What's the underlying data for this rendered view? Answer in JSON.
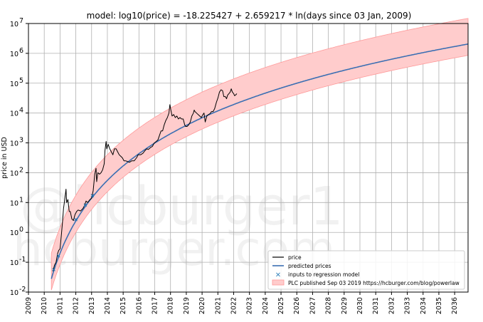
{
  "chart_data": {
    "type": "line",
    "title": "model: log10(price) = -18.225427 + 2.659217 * ln(days since 03 Jan, 2009)",
    "xlabel": "",
    "ylabel": "price in USD",
    "xlim": [
      2009.0,
      2036.85
    ],
    "ylim_log10": [
      -2,
      7
    ],
    "y_scale": "log",
    "grid": true,
    "x_tick_labels": [
      "2009",
      "2010",
      "2011",
      "2012",
      "2013",
      "2014",
      "2015",
      "2016",
      "2017",
      "2018",
      "2019",
      "2020",
      "2021",
      "2022",
      "2023",
      "2024",
      "2025",
      "2026",
      "2027",
      "2028",
      "2029",
      "2030",
      "2031",
      "2032",
      "2033",
      "2034",
      "2035",
      "2036"
    ],
    "y_tick_labels": [
      {
        "base": "10",
        "exp": "-2"
      },
      {
        "base": "10",
        "exp": "-1"
      },
      {
        "base": "10",
        "exp": "0"
      },
      {
        "base": "10",
        "exp": "1"
      },
      {
        "base": "10",
        "exp": "2"
      },
      {
        "base": "10",
        "exp": "3"
      },
      {
        "base": "10",
        "exp": "4"
      },
      {
        "base": "10",
        "exp": "5"
      },
      {
        "base": "10",
        "exp": "6"
      },
      {
        "base": "10",
        "exp": "7"
      }
    ],
    "model": {
      "intercept": -18.225427,
      "slope": 2.659217,
      "epoch": "03 Jan, 2009",
      "start_year": 2010.45,
      "band_upper_log10_offset": 0.86,
      "band_lower_log10_offset": -0.38
    },
    "series": [
      {
        "name": "price",
        "color": "#000000",
        "points": [
          [
            2010.55,
            -1.3
          ],
          [
            2010.65,
            -1.1
          ],
          [
            2010.75,
            -1.0
          ],
          [
            2010.85,
            -0.7
          ],
          [
            2010.92,
            -0.6
          ],
          [
            2011.0,
            -0.55
          ],
          [
            2011.08,
            -0.1
          ],
          [
            2011.15,
            0.3
          ],
          [
            2011.22,
            0.8
          ],
          [
            2011.3,
            1.1
          ],
          [
            2011.38,
            1.45
          ],
          [
            2011.42,
            1.0
          ],
          [
            2011.5,
            1.1
          ],
          [
            2011.58,
            0.7
          ],
          [
            2011.65,
            0.7
          ],
          [
            2011.75,
            0.45
          ],
          [
            2011.85,
            0.4
          ],
          [
            2011.95,
            0.6
          ],
          [
            2012.05,
            0.7
          ],
          [
            2012.15,
            0.75
          ],
          [
            2012.3,
            0.72
          ],
          [
            2012.45,
            0.8
          ],
          [
            2012.55,
            0.9
          ],
          [
            2012.65,
            1.05
          ],
          [
            2012.75,
            1.0
          ],
          [
            2012.9,
            1.1
          ],
          [
            2013.0,
            1.15
          ],
          [
            2013.1,
            1.4
          ],
          [
            2013.2,
            1.95
          ],
          [
            2013.28,
            2.15
          ],
          [
            2013.32,
            1.7
          ],
          [
            2013.4,
            2.0
          ],
          [
            2013.5,
            1.95
          ],
          [
            2013.6,
            2.0
          ],
          [
            2013.7,
            2.1
          ],
          [
            2013.8,
            2.3
          ],
          [
            2013.85,
            2.75
          ],
          [
            2013.92,
            3.05
          ],
          [
            2013.96,
            2.8
          ],
          [
            2014.05,
            2.95
          ],
          [
            2014.15,
            2.8
          ],
          [
            2014.25,
            2.7
          ],
          [
            2014.35,
            2.6
          ],
          [
            2014.45,
            2.8
          ],
          [
            2014.55,
            2.8
          ],
          [
            2014.65,
            2.7
          ],
          [
            2014.75,
            2.6
          ],
          [
            2014.85,
            2.55
          ],
          [
            2014.95,
            2.5
          ],
          [
            2015.05,
            2.4
          ],
          [
            2015.15,
            2.4
          ],
          [
            2015.25,
            2.38
          ],
          [
            2015.4,
            2.35
          ],
          [
            2015.55,
            2.4
          ],
          [
            2015.7,
            2.4
          ],
          [
            2015.85,
            2.5
          ],
          [
            2015.95,
            2.6
          ],
          [
            2016.1,
            2.6
          ],
          [
            2016.25,
            2.65
          ],
          [
            2016.4,
            2.75
          ],
          [
            2016.5,
            2.8
          ],
          [
            2016.6,
            2.78
          ],
          [
            2016.75,
            2.85
          ],
          [
            2016.85,
            2.88
          ],
          [
            2016.97,
            3.0
          ],
          [
            2017.1,
            3.05
          ],
          [
            2017.2,
            3.1
          ],
          [
            2017.3,
            3.25
          ],
          [
            2017.4,
            3.4
          ],
          [
            2017.5,
            3.4
          ],
          [
            2017.6,
            3.6
          ],
          [
            2017.7,
            3.75
          ],
          [
            2017.8,
            3.85
          ],
          [
            2017.9,
            4.0
          ],
          [
            2017.96,
            4.28
          ],
          [
            2018.02,
            4.1
          ],
          [
            2018.1,
            3.9
          ],
          [
            2018.2,
            3.95
          ],
          [
            2018.3,
            3.85
          ],
          [
            2018.4,
            3.9
          ],
          [
            2018.5,
            3.8
          ],
          [
            2018.6,
            3.85
          ],
          [
            2018.7,
            3.8
          ],
          [
            2018.8,
            3.8
          ],
          [
            2018.9,
            3.6
          ],
          [
            2018.96,
            3.55
          ],
          [
            2019.05,
            3.55
          ],
          [
            2019.15,
            3.6
          ],
          [
            2019.25,
            3.7
          ],
          [
            2019.35,
            3.9
          ],
          [
            2019.45,
            4.0
          ],
          [
            2019.5,
            4.1
          ],
          [
            2019.55,
            4.05
          ],
          [
            2019.65,
            4.0
          ],
          [
            2019.75,
            3.95
          ],
          [
            2019.85,
            3.9
          ],
          [
            2019.95,
            3.85
          ],
          [
            2020.05,
            3.95
          ],
          [
            2020.12,
            4.0
          ],
          [
            2020.2,
            3.7
          ],
          [
            2020.3,
            3.9
          ],
          [
            2020.4,
            3.95
          ],
          [
            2020.5,
            3.98
          ],
          [
            2020.6,
            4.05
          ],
          [
            2020.7,
            4.05
          ],
          [
            2020.8,
            4.15
          ],
          [
            2020.9,
            4.35
          ],
          [
            2021.0,
            4.5
          ],
          [
            2021.1,
            4.7
          ],
          [
            2021.2,
            4.78
          ],
          [
            2021.3,
            4.75
          ],
          [
            2021.38,
            4.55
          ],
          [
            2021.48,
            4.55
          ],
          [
            2021.55,
            4.48
          ],
          [
            2021.62,
            4.6
          ],
          [
            2021.7,
            4.65
          ],
          [
            2021.78,
            4.7
          ],
          [
            2021.85,
            4.81
          ],
          [
            2021.92,
            4.7
          ],
          [
            2022.0,
            4.65
          ],
          [
            2022.06,
            4.58
          ],
          [
            2022.12,
            4.6
          ],
          [
            2022.2,
            4.65
          ]
        ]
      },
      {
        "name": "predicted prices",
        "color": "#3b6fb3"
      },
      {
        "name": "inputs to regression model",
        "color": "#1f77b4",
        "marker": "x"
      },
      {
        "name": "PLC published Sep 03 2019 https://hcburger.com/blog/powerlaw",
        "color": "#ffcccc"
      }
    ],
    "legend": {
      "position": "lower-right",
      "entries": [
        {
          "label": "price"
        },
        {
          "label": "predicted prices"
        },
        {
          "label": "inputs to regression model"
        },
        {
          "label": "PLC published Sep 03 2019 https://hcburger.com/blog/powerlaw"
        }
      ]
    },
    "watermark": [
      "@hcburger1",
      "hcburger.com"
    ]
  },
  "colors": {
    "band_fill": "#ffcccc",
    "band_edge": "#ff9999",
    "model_line": "#3b6fb3",
    "price_line": "#000000",
    "grid": "#b0b0b0"
  }
}
